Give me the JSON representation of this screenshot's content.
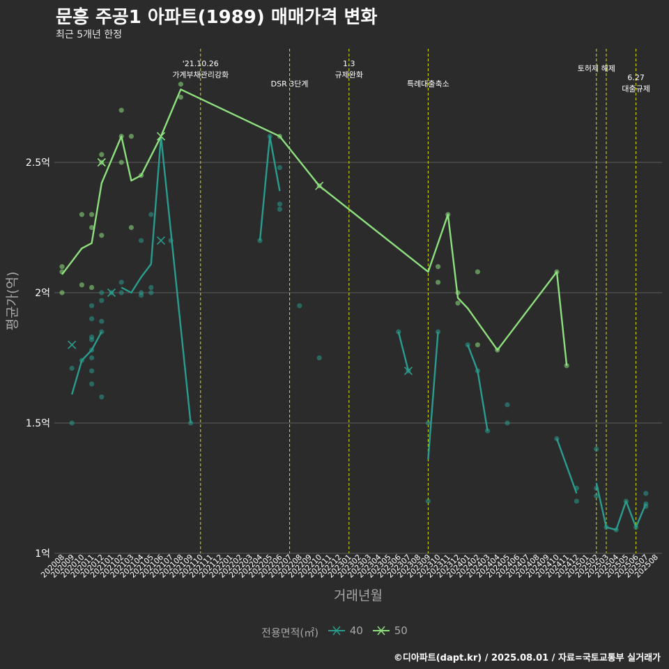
{
  "title": "문흥 주공1 아파트(1989) 매매가격 변화",
  "subtitle": "최근 5개년 한정",
  "caption": "©디아파트(dapt.kr) / 2025.08.01 / 자료=국토교통부 실거래가",
  "legend": {
    "title": "전용면적(㎡)",
    "items": [
      {
        "label": "40",
        "color": "#2a9d8f"
      },
      {
        "label": "50",
        "color": "#8fe07f"
      }
    ]
  },
  "chart_data": {
    "type": "line",
    "xlabel": "거래년월",
    "ylabel": "평균가(억)",
    "ylim": [
      1.0,
      2.93
    ],
    "yticks": [
      1.0,
      1.5,
      2.0,
      2.5
    ],
    "ytick_labels": [
      "1억",
      "1.5억",
      "2억",
      "2.5억"
    ],
    "grid": "horizontal",
    "legend_position": "bottom",
    "months": [
      "202008",
      "202009",
      "202010",
      "202011",
      "202012",
      "202101",
      "202102",
      "202103",
      "202104",
      "202105",
      "202106",
      "202107",
      "202108",
      "202109",
      "202110",
      "202111",
      "202112",
      "202201",
      "202202",
      "202203",
      "202204",
      "202205",
      "202206",
      "202207",
      "202208",
      "202209",
      "202210",
      "202211",
      "202212",
      "202301",
      "202302",
      "202303",
      "202304",
      "202305",
      "202306",
      "202307",
      "202308",
      "202309",
      "202310",
      "202311",
      "202312",
      "202401",
      "202402",
      "202403",
      "202404",
      "202405",
      "202406",
      "202407",
      "202408",
      "202409",
      "202410",
      "202411",
      "202412",
      "202501",
      "202502",
      "202503",
      "202504",
      "202505",
      "202506",
      "202507",
      "202508"
    ],
    "events": [
      {
        "month": 14.0,
        "lines": [
          "'21.10.26",
          "가계부채관리강화"
        ],
        "row": 0
      },
      {
        "month": 23.0,
        "lines": [
          "DSR 3단계"
        ],
        "row": 1
      },
      {
        "month": 29.0,
        "lines": [
          "1.3",
          "규제완화"
        ],
        "row": 0
      },
      {
        "month": 37.0,
        "lines": [
          "특례대출축소"
        ],
        "row": 1
      },
      {
        "month": 54.0,
        "lines": [
          "토허제 해제"
        ],
        "row": 0
      },
      {
        "month": 55.0,
        "lines": [],
        "row": 0
      },
      {
        "month": 58.0,
        "lines": [
          "6.27",
          "대출규제"
        ],
        "row": 1
      }
    ],
    "series": [
      {
        "name": "40",
        "color": "#2a9d8f",
        "line": [
          [
            [
              1,
              1.61
            ],
            [
              2,
              1.74
            ],
            [
              3,
              1.78
            ],
            [
              4,
              1.85
            ]
          ],
          [
            [
              6,
              2.02
            ],
            [
              7,
              2.0
            ],
            [
              8,
              2.06
            ],
            [
              9,
              2.11
            ],
            [
              10,
              2.6
            ],
            [
              13,
              1.5
            ]
          ],
          [
            [
              20,
              2.2
            ],
            [
              21,
              2.6
            ],
            [
              22,
              2.39
            ]
          ],
          [
            [
              34,
              1.85
            ],
            [
              35,
              1.7
            ]
          ],
          [
            [
              37,
              1.36
            ],
            [
              38,
              1.85
            ]
          ],
          [
            [
              41,
              1.8
            ],
            [
              42,
              1.7
            ],
            [
              43,
              1.47
            ]
          ],
          [
            [
              50,
              1.44
            ],
            [
              52,
              1.23
            ]
          ],
          [
            [
              54,
              1.27
            ],
            [
              55,
              1.1
            ],
            [
              56,
              1.09
            ],
            [
              57,
              1.2
            ],
            [
              58,
              1.1
            ],
            [
              59,
              1.19
            ]
          ]
        ],
        "points": [
          [
            1,
            1.5
          ],
          [
            1,
            1.71
          ],
          [
            2,
            1.74
          ],
          [
            3,
            1.65
          ],
          [
            3,
            1.7
          ],
          [
            3,
            1.75
          ],
          [
            3,
            1.78
          ],
          [
            3,
            1.82
          ],
          [
            3,
            1.83
          ],
          [
            3,
            1.9
          ],
          [
            3,
            1.95
          ],
          [
            4,
            1.6
          ],
          [
            4,
            1.85
          ],
          [
            4,
            1.89
          ],
          [
            4,
            1.97
          ],
          [
            4,
            2.0
          ],
          [
            5,
            2.0
          ],
          [
            6,
            2.0
          ],
          [
            6,
            2.04
          ],
          [
            8,
            1.99
          ],
          [
            8,
            2.0
          ],
          [
            8,
            2.2
          ],
          [
            9,
            2.0
          ],
          [
            9,
            2.02
          ],
          [
            9,
            2.3
          ],
          [
            11,
            2.2
          ],
          [
            13,
            1.5
          ],
          [
            20,
            2.2
          ],
          [
            21,
            2.6
          ],
          [
            22,
            2.32
          ],
          [
            22,
            2.34
          ],
          [
            22,
            2.48
          ],
          [
            24,
            1.95
          ],
          [
            26,
            1.75
          ],
          [
            34,
            1.85
          ],
          [
            35,
            1.7
          ],
          [
            37,
            1.2
          ],
          [
            37,
            1.5
          ],
          [
            38,
            1.85
          ],
          [
            41,
            1.8
          ],
          [
            42,
            1.7
          ],
          [
            43,
            1.47
          ],
          [
            45,
            1.5
          ],
          [
            45,
            1.57
          ],
          [
            50,
            1.44
          ],
          [
            52,
            1.2
          ],
          [
            52,
            1.25
          ],
          [
            54,
            1.22
          ],
          [
            54,
            1.25
          ],
          [
            54,
            1.4
          ],
          [
            55,
            1.1
          ],
          [
            56,
            1.09
          ],
          [
            57,
            1.2
          ],
          [
            58,
            1.1
          ],
          [
            59,
            1.18
          ],
          [
            59,
            1.19
          ],
          [
            59,
            1.23
          ]
        ],
        "markers": [
          [
            1,
            1.8
          ],
          [
            5,
            2.0
          ],
          [
            10,
            2.2
          ],
          [
            35,
            1.7
          ]
        ]
      },
      {
        "name": "50",
        "color": "#8fe07f",
        "line": [
          [
            [
              0,
              2.07
            ],
            [
              2,
              2.17
            ],
            [
              3,
              2.19
            ],
            [
              4,
              2.42
            ],
            [
              6,
              2.6
            ],
            [
              7,
              2.43
            ],
            [
              8,
              2.45
            ],
            [
              10,
              2.6
            ],
            [
              12,
              2.78
            ],
            [
              22,
              2.6
            ],
            [
              26,
              2.41
            ],
            [
              37,
              2.08
            ],
            [
              39,
              2.3
            ],
            [
              40,
              1.98
            ],
            [
              41,
              1.94
            ],
            [
              44,
              1.78
            ],
            [
              50,
              2.08
            ],
            [
              51,
              1.72
            ]
          ]
        ],
        "points": [
          [
            0,
            2.0
          ],
          [
            0,
            2.08
          ],
          [
            0,
            2.1
          ],
          [
            2,
            2.03
          ],
          [
            2,
            2.3
          ],
          [
            3,
            2.02
          ],
          [
            3,
            2.25
          ],
          [
            3,
            2.3
          ],
          [
            4,
            2.22
          ],
          [
            4,
            2.5
          ],
          [
            4,
            2.53
          ],
          [
            6,
            2.5
          ],
          [
            6,
            2.6
          ],
          [
            6,
            2.7
          ],
          [
            7,
            2.25
          ],
          [
            7,
            2.6
          ],
          [
            8,
            2.45
          ],
          [
            12,
            2.75
          ],
          [
            12,
            2.8
          ],
          [
            22,
            2.6
          ],
          [
            26,
            2.41
          ],
          [
            38,
            2.04
          ],
          [
            38,
            2.1
          ],
          [
            39,
            2.3
          ],
          [
            40,
            1.96
          ],
          [
            40,
            2.0
          ],
          [
            42,
            1.8
          ],
          [
            42,
            2.08
          ],
          [
            44,
            1.78
          ],
          [
            50,
            2.08
          ],
          [
            51,
            1.72
          ]
        ],
        "markers": [
          [
            4,
            2.5
          ],
          [
            10,
            2.6
          ],
          [
            26,
            2.41
          ]
        ]
      }
    ]
  }
}
